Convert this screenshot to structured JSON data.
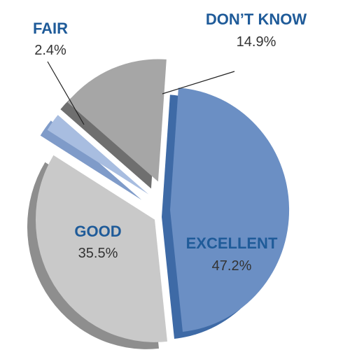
{
  "chart_data": {
    "type": "pie",
    "style": "3d-exploded",
    "slices": [
      {
        "label": "EXCELLENT",
        "value": 47.2,
        "value_label": "47.2%",
        "color": "#6b8fc4",
        "side_color": "#3e6aa6"
      },
      {
        "label": "GOOD",
        "value": 35.5,
        "value_label": "35.5%",
        "color": "#c9c9c9",
        "side_color": "#8e8e8e"
      },
      {
        "label": "FAIR",
        "value": 2.4,
        "value_label": "2.4%",
        "color": "#a8bde0",
        "side_color": "#7f9bc9"
      },
      {
        "label": "DON’T KNOW",
        "value": 14.9,
        "value_label": "14.9%",
        "color": "#a6a6a6",
        "side_color": "#6f6f6f"
      }
    ],
    "legend": "none"
  }
}
